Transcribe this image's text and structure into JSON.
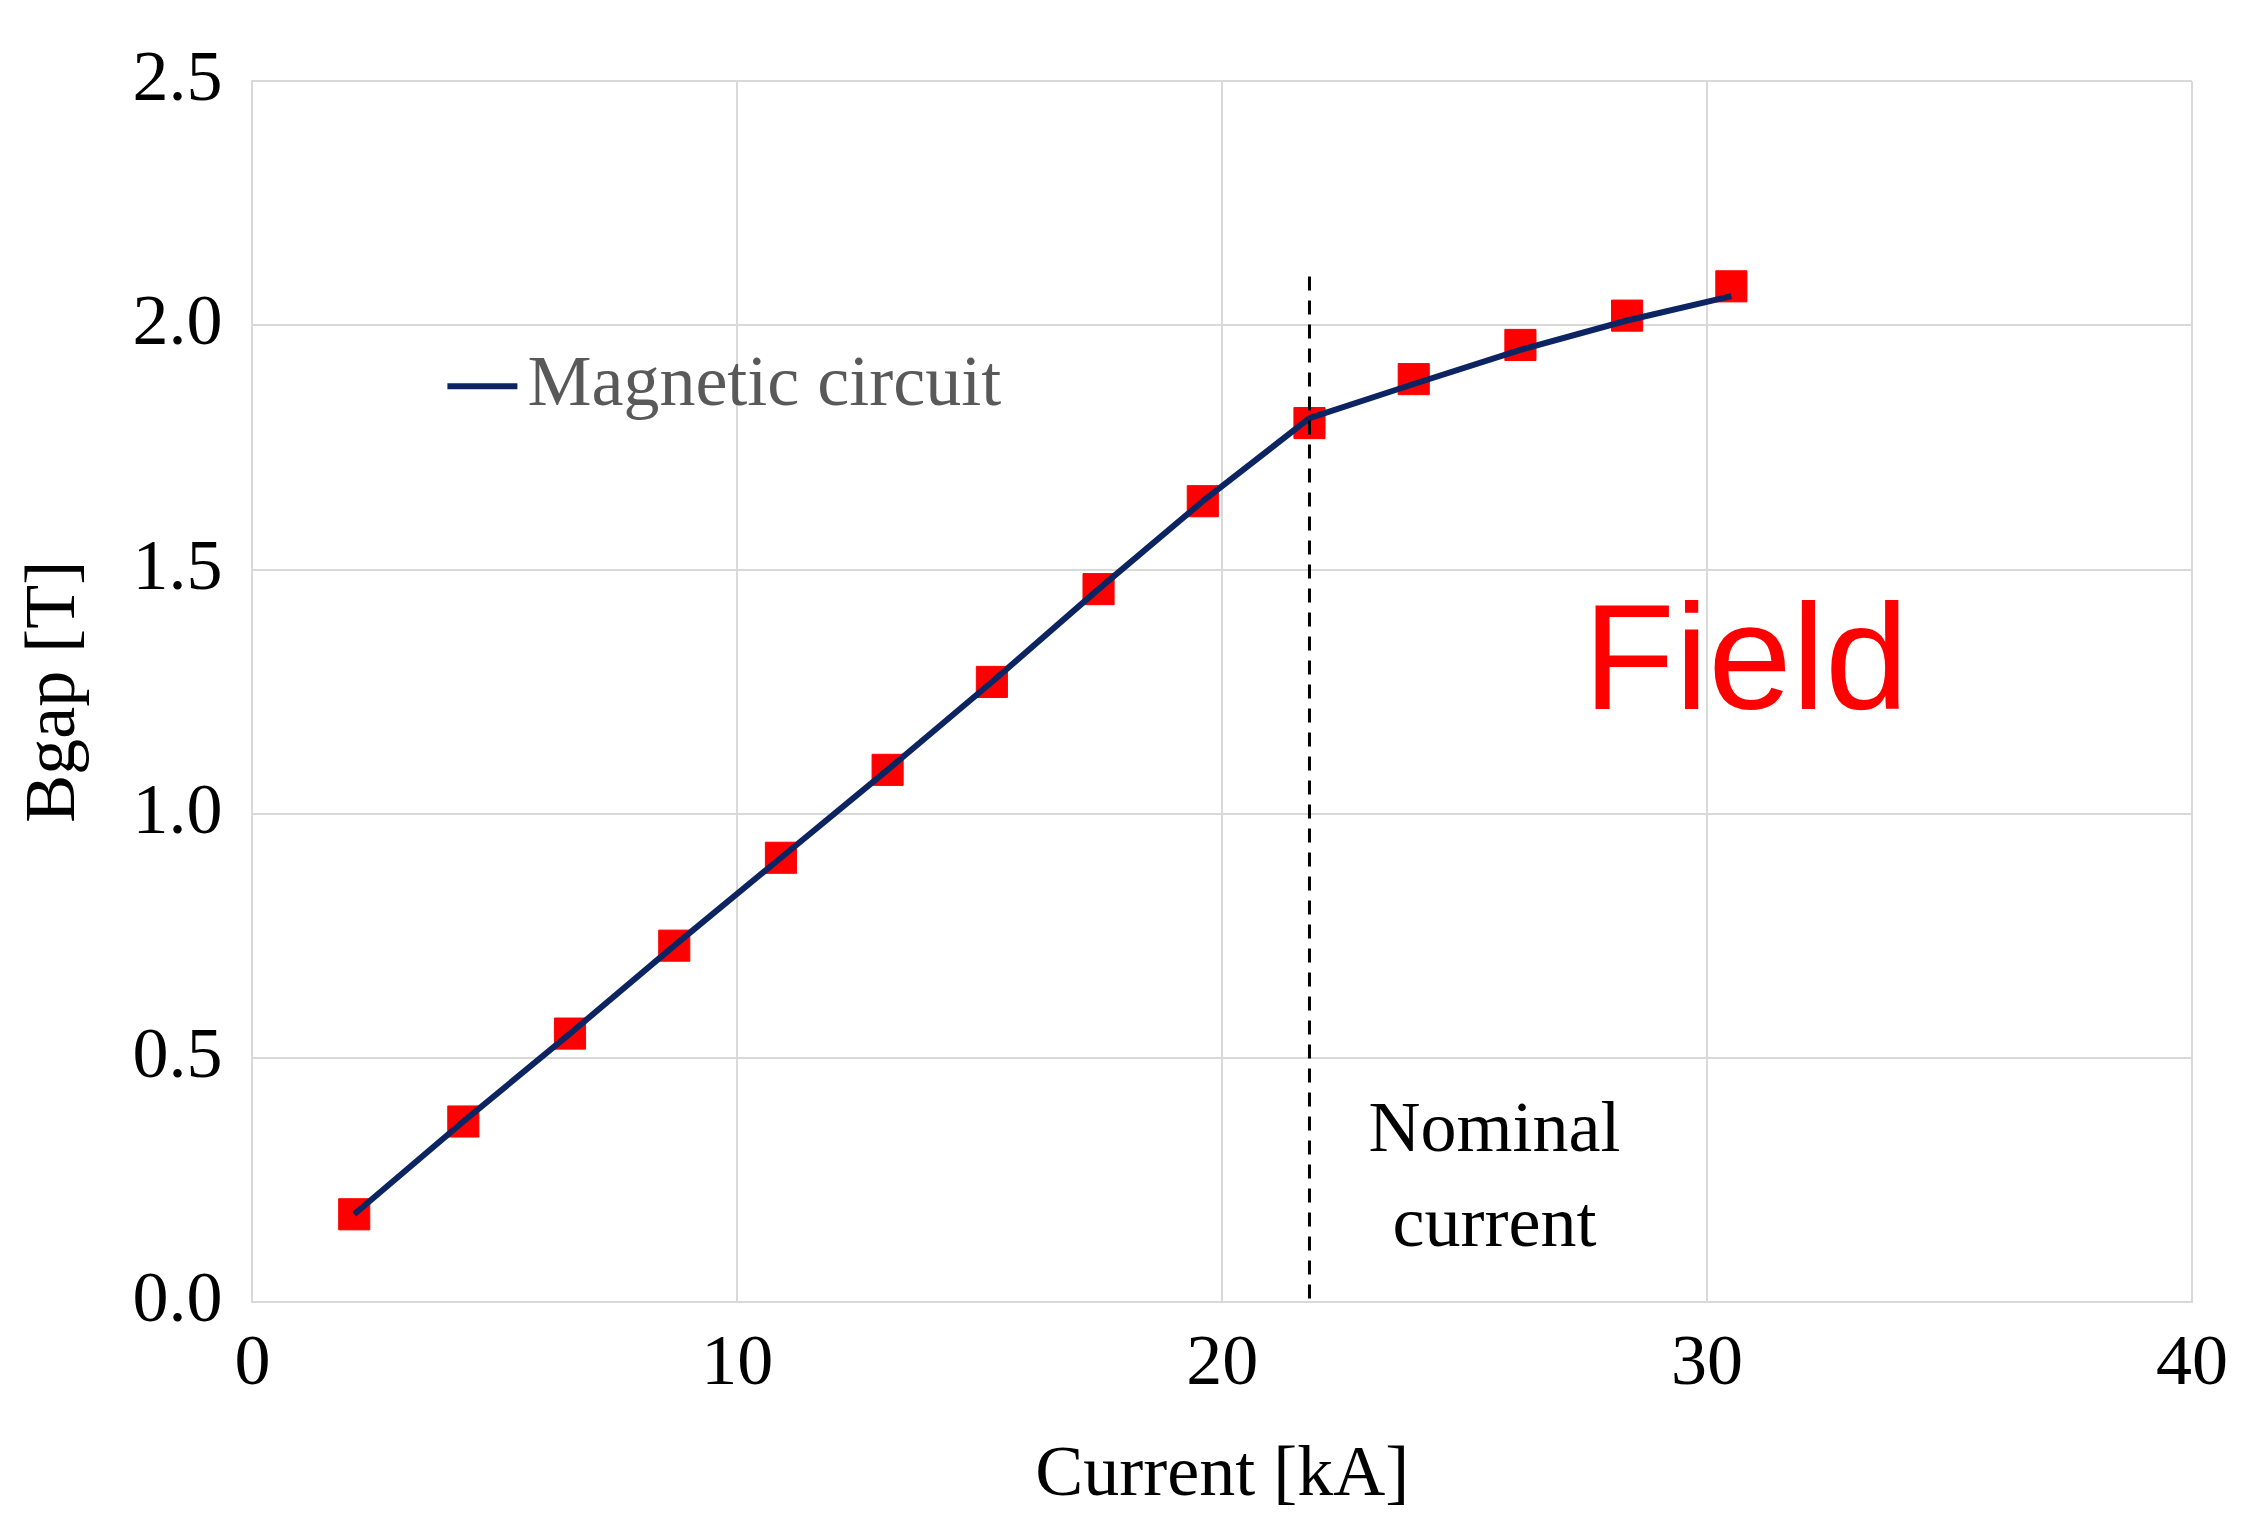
{
  "chart_data": {
    "type": "line",
    "xlabel": "Current [kA]",
    "ylabel": "Bgap [T]",
    "xlim": [
      0,
      40
    ],
    "xticks": [
      0,
      10,
      20,
      30,
      40
    ],
    "ylim": [
      0,
      2.5
    ],
    "yticks": [
      {
        "value": 0,
        "label": "0.0"
      },
      {
        "value": 0.5,
        "label": "0.5"
      },
      {
        "value": 1,
        "label": "1.0"
      },
      {
        "value": 1.5,
        "label": "1.5"
      },
      {
        "value": 2,
        "label": "2.0"
      },
      {
        "value": 2.5,
        "label": "2.5"
      }
    ],
    "grid": true,
    "legend": "top left",
    "series": [
      {
        "type": "scatter",
        "color": "#ff0000",
        "marker": "square",
        "x": [
          2.1,
          4.35,
          6.55,
          8.7,
          10.9,
          13.1,
          15.25,
          17.45,
          19.6,
          21.8,
          23.95,
          26.15,
          28.35,
          30.5
        ],
        "values": [
          0.18,
          0.37,
          0.55,
          0.73,
          0.91,
          1.09,
          1.27,
          1.46,
          1.64,
          1.8,
          1.89,
          1.96,
          2.02,
          2.08
        ]
      },
      {
        "name": "Magnetic circuit",
        "color": "#0c2461",
        "line_style": "solid",
        "x": [
          2.1,
          4.35,
          6.55,
          8.7,
          10.9,
          13.1,
          15.25,
          17.45,
          19.6,
          21.8,
          23.95,
          26.15,
          28.35,
          30.5
        ],
        "values": [
          0.18,
          0.37,
          0.55,
          0.73,
          0.91,
          1.09,
          1.27,
          1.46,
          1.64,
          1.81,
          1.88,
          1.95,
          2.01,
          2.06
        ]
      }
    ],
    "ref_lines": [
      {
        "axis": "x",
        "value": 21.8,
        "label": "Nominal current",
        "color": "#000000",
        "line_style": "dashed"
      }
    ],
    "annotations": [
      "Field"
    ]
  }
}
